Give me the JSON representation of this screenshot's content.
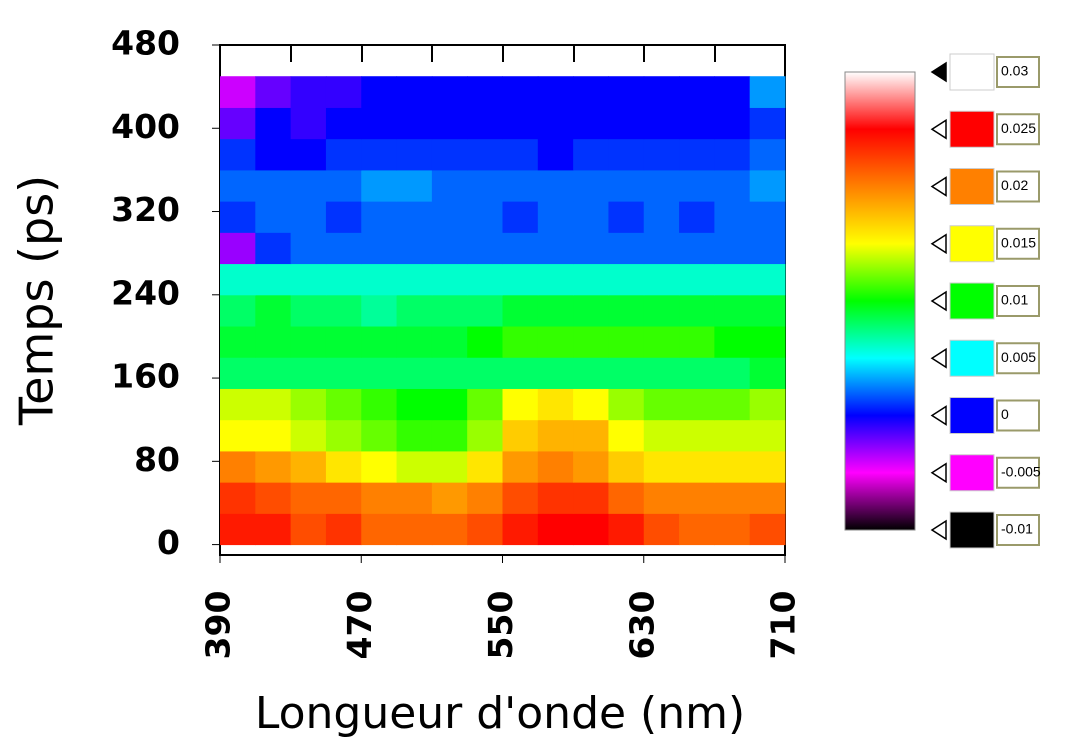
{
  "chart_data": {
    "type": "heatmap",
    "x_label": "Longueur d'onde (nm)",
    "y_label": "Temps (ps)",
    "xlim": [
      390,
      710
    ],
    "ylim": [
      -10,
      480
    ],
    "xticks": [
      390,
      470,
      550,
      630,
      710
    ],
    "yticks": [
      0,
      80,
      160,
      240,
      320,
      400,
      480
    ],
    "xbins": [
      390,
      410,
      430,
      450,
      470,
      490,
      510,
      530,
      550,
      570,
      590,
      610,
      630,
      650,
      670,
      690,
      710
    ],
    "ybins": [
      0,
      30,
      60,
      90,
      120,
      150,
      180,
      210,
      240,
      270,
      300,
      330,
      360,
      390,
      420,
      450
    ],
    "z": [
      [
        0.024,
        0.024,
        0.022,
        0.023,
        0.021,
        0.021,
        0.021,
        0.022,
        0.024,
        0.025,
        0.025,
        0.024,
        0.022,
        0.021,
        0.021,
        0.022
      ],
      [
        0.023,
        0.022,
        0.021,
        0.021,
        0.02,
        0.02,
        0.019,
        0.02,
        0.022,
        0.023,
        0.023,
        0.021,
        0.02,
        0.02,
        0.02,
        0.02
      ],
      [
        0.02,
        0.019,
        0.018,
        0.016,
        0.015,
        0.014,
        0.014,
        0.016,
        0.019,
        0.02,
        0.019,
        0.017,
        0.016,
        0.016,
        0.016,
        0.016
      ],
      [
        0.015,
        0.015,
        0.014,
        0.013,
        0.012,
        0.011,
        0.011,
        0.013,
        0.017,
        0.018,
        0.018,
        0.015,
        0.014,
        0.014,
        0.014,
        0.014
      ],
      [
        0.014,
        0.014,
        0.013,
        0.012,
        0.011,
        0.01,
        0.01,
        0.012,
        0.015,
        0.016,
        0.015,
        0.013,
        0.012,
        0.012,
        0.012,
        0.013
      ],
      [
        0.008,
        0.008,
        0.008,
        0.008,
        0.008,
        0.008,
        0.008,
        0.008,
        0.008,
        0.008,
        0.008,
        0.008,
        0.008,
        0.008,
        0.008,
        0.009
      ],
      [
        0.009,
        0.009,
        0.009,
        0.009,
        0.009,
        0.009,
        0.009,
        0.01,
        0.011,
        0.011,
        0.011,
        0.011,
        0.011,
        0.011,
        0.01,
        0.01
      ],
      [
        0.008,
        0.009,
        0.008,
        0.008,
        0.007,
        0.008,
        0.008,
        0.008,
        0.009,
        0.009,
        0.009,
        0.009,
        0.009,
        0.009,
        0.009,
        0.009
      ],
      [
        0.006,
        0.006,
        0.006,
        0.006,
        0.006,
        0.006,
        0.006,
        0.006,
        0.006,
        0.006,
        0.006,
        0.006,
        0.006,
        0.006,
        0.006,
        0.006
      ],
      [
        -0.003,
        0.001,
        0.002,
        0.002,
        0.002,
        0.002,
        0.002,
        0.002,
        0.002,
        0.002,
        0.002,
        0.002,
        0.002,
        0.002,
        0.002,
        0.002
      ],
      [
        0.001,
        0.002,
        0.002,
        0.001,
        0.002,
        0.002,
        0.002,
        0.002,
        0.001,
        0.002,
        0.002,
        0.001,
        0.002,
        0.001,
        0.002,
        0.002
      ],
      [
        0.002,
        0.002,
        0.002,
        0.002,
        0.003,
        0.003,
        0.002,
        0.002,
        0.002,
        0.002,
        0.002,
        0.002,
        0.002,
        0.002,
        0.002,
        0.003
      ],
      [
        0.001,
        0,
        0,
        0.001,
        0.001,
        0.001,
        0.001,
        0.001,
        0.001,
        0,
        0.001,
        0.001,
        0.001,
        0.001,
        0.001,
        0.002
      ],
      [
        -0.002,
        0,
        -0.001,
        0,
        0,
        0,
        0,
        0,
        0,
        0,
        0,
        0,
        0,
        0,
        0,
        0.001
      ],
      [
        -0.004,
        -0.002,
        -0.001,
        -0.001,
        0,
        0,
        0,
        0,
        0,
        0,
        0,
        0,
        0,
        0,
        0,
        0.003
      ]
    ],
    "levels": [
      0.03,
      0.025,
      0.02,
      0.015,
      0.01,
      0.005,
      0,
      -0.005,
      -0.01
    ],
    "level_colors": [
      "#ffffff",
      "#ff0000",
      "#ff8000",
      "#ffff00",
      "#00ff00",
      "#00ffff",
      "#0000ff",
      "#ff00ff",
      "#000000"
    ]
  }
}
